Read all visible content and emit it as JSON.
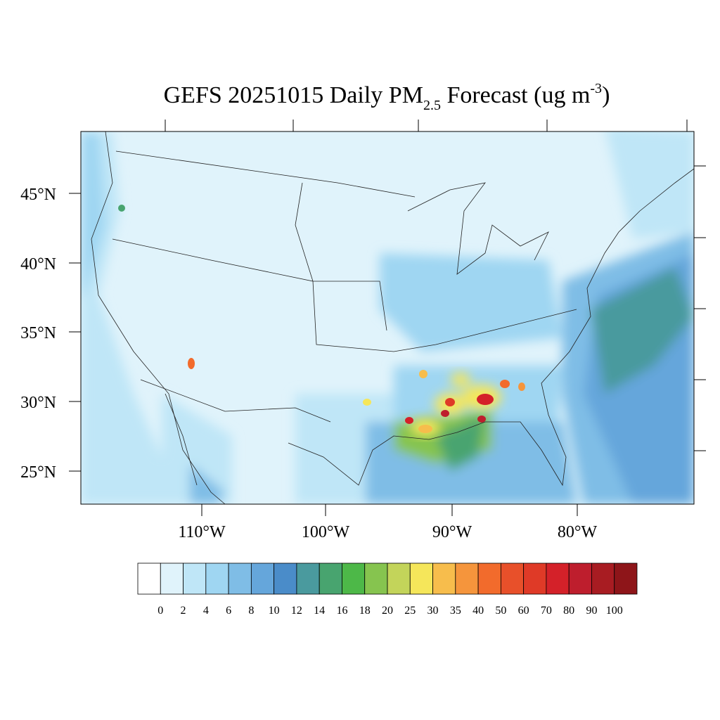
{
  "title": {
    "main": "GEFS 20251015 Daily PM",
    "sub": "2.5",
    "mid": " Forecast (ug m",
    "sup": "-3",
    "end": ")"
  },
  "map": {
    "lat_labels": [
      "45°N",
      "40°N",
      "35°N",
      "30°N",
      "25°N"
    ],
    "lon_labels": [
      "110°W",
      "100°W",
      "90°W",
      "80°W"
    ]
  },
  "colorbar": {
    "levels": [
      0,
      2,
      4,
      6,
      8,
      10,
      12,
      14,
      16,
      18,
      20,
      25,
      30,
      35,
      40,
      50,
      60,
      70,
      80,
      90,
      100
    ],
    "colors": [
      "#ffffff",
      "#e0f3fb",
      "#bfe6f7",
      "#9fd6f2",
      "#7fbde6",
      "#65a6db",
      "#4a8cc9",
      "#4a9a9e",
      "#48a46f",
      "#4db848",
      "#86c44f",
      "#c3d45a",
      "#f5e65a",
      "#f7bd4c",
      "#f5953c",
      "#f26b2c",
      "#e8502a",
      "#df3a27",
      "#d42129",
      "#be1e2d",
      "#a81c22",
      "#8e1519"
    ]
  }
}
